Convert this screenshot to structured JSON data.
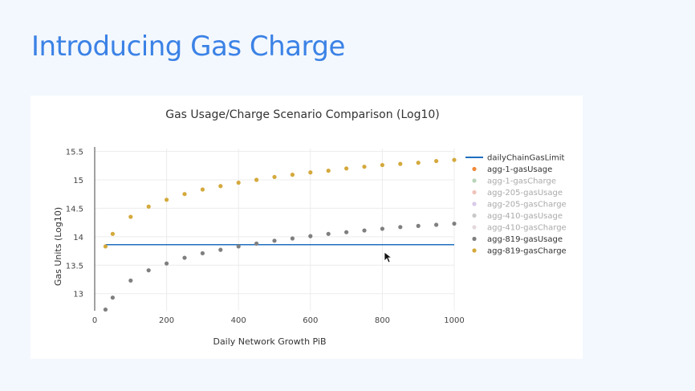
{
  "slide": {
    "title": "Introducing Gas Charge"
  },
  "colors": {
    "accent": "#3b82e6",
    "limit_line": "#1f6fbf",
    "usage_819": "#7f7f7f",
    "charge_819": "#d4a93c"
  },
  "chart_data": {
    "type": "scatter",
    "title": "Gas Usage/Charge Scenario Comparison (Log10)",
    "xlabel": "Daily Network Growth PiB",
    "ylabel": "Gas Units (Log10)",
    "xlim": [
      0,
      1000
    ],
    "ylim": [
      12.7,
      15.55
    ],
    "xticks": [
      0,
      200,
      400,
      600,
      800,
      1000
    ],
    "yticks": [
      13,
      13.5,
      14,
      14.5,
      15,
      15.5
    ],
    "yticklabels": [
      "13",
      "13.5",
      "14",
      "14.5",
      "15",
      "15.5"
    ],
    "grid": true,
    "legend_position": "right",
    "series": [
      {
        "name": "dailyChainGasLimit",
        "kind": "line",
        "color": "#1f6fbf",
        "x": [
          30,
          1000
        ],
        "y": [
          13.86,
          13.86
        ]
      },
      {
        "name": "agg-1-gasUsage",
        "kind": "marker",
        "color": "#ef8a3a",
        "x": [],
        "y": []
      },
      {
        "name": "agg-1-gasCharge",
        "kind": "marker",
        "color": "#9bc39b",
        "dim": true,
        "x": [],
        "y": []
      },
      {
        "name": "agg-205-gasUsage",
        "kind": "marker",
        "color": "#e8a9a0",
        "dim": true,
        "x": [],
        "y": []
      },
      {
        "name": "agg-205-gasCharge",
        "kind": "marker",
        "color": "#c7b3de",
        "dim": true,
        "x": [],
        "y": []
      },
      {
        "name": "agg-410-gasUsage",
        "kind": "marker",
        "color": "#b0b0b0",
        "dim": true,
        "x": [],
        "y": []
      },
      {
        "name": "agg-410-gasCharge",
        "kind": "marker",
        "color": "#d9c9d2",
        "dim": true,
        "x": [],
        "y": []
      },
      {
        "name": "agg-819-gasUsage",
        "kind": "marker",
        "color": "#7f7f7f",
        "x": [
          30,
          50,
          100,
          150,
          200,
          250,
          300,
          350,
          400,
          450,
          500,
          550,
          600,
          650,
          700,
          750,
          800,
          850,
          900,
          950,
          1000
        ],
        "y": [
          12.72,
          12.93,
          13.23,
          13.41,
          13.53,
          13.63,
          13.71,
          13.77,
          13.83,
          13.88,
          13.93,
          13.97,
          14.01,
          14.05,
          14.08,
          14.11,
          14.14,
          14.17,
          14.19,
          14.21,
          14.23
        ]
      },
      {
        "name": "agg-819-gasCharge",
        "kind": "marker",
        "color": "#d4a93c",
        "x": [
          30,
          50,
          100,
          150,
          200,
          250,
          300,
          350,
          400,
          450,
          500,
          550,
          600,
          650,
          700,
          750,
          800,
          850,
          900,
          950,
          1000
        ],
        "y": [
          13.83,
          14.05,
          14.35,
          14.53,
          14.65,
          14.75,
          14.83,
          14.89,
          14.95,
          15.0,
          15.05,
          15.09,
          15.13,
          15.16,
          15.2,
          15.23,
          15.26,
          15.28,
          15.3,
          15.33,
          15.35
        ]
      }
    ]
  }
}
